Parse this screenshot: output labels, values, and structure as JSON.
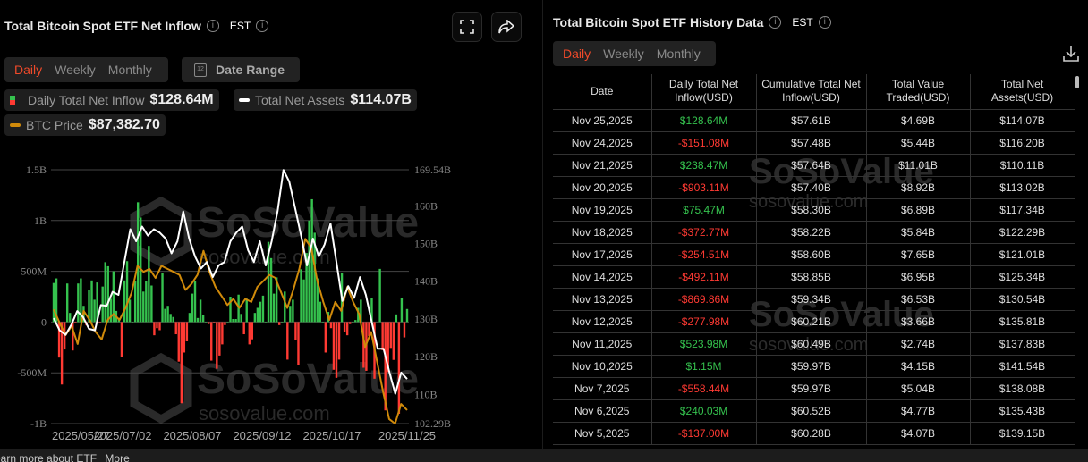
{
  "chart_panel": {
    "title": "Total Bitcoin Spot ETF Net Inflow",
    "timezone": "EST",
    "icons": [
      "info-icon",
      "fullscreen-icon",
      "share-icon",
      "calendar-icon"
    ],
    "period_tabs": [
      "Daily",
      "Weekly",
      "Monthly"
    ],
    "active_tab": "Daily",
    "date_range_label": "Date Range",
    "calendar_day": "12",
    "legend": [
      {
        "label": "Daily Total Net Inflow",
        "value": "$128.64M"
      },
      {
        "label": "Total Net Assets",
        "value": "$114.07B"
      },
      {
        "label": "BTC Price",
        "value": "$87,382.70"
      }
    ],
    "watermark": {
      "brand": "SoSoValue",
      "site": "sosovalue.com"
    }
  },
  "colors": {
    "accent": "#f04a2a",
    "inflow_positive": "#35c24e",
    "inflow_negative": "#ff3a33",
    "net_assets_line": "#ffffff",
    "btc_line": "#d08a0a"
  },
  "chart_data": {
    "type": "bar+line",
    "x_tick_labels": [
      "2025/05/27",
      "2025/07/02",
      "2025/08/07",
      "2025/09/12",
      "2025/10/17",
      "2025/11/25"
    ],
    "left_axis": {
      "tick_labels": [
        "1.5B",
        "1B",
        "500M",
        "0",
        "-500M",
        "-1B"
      ],
      "ylim_millions": [
        -1000,
        1500
      ]
    },
    "right_axis": {
      "tick_labels": [
        "169.54B",
        "160B",
        "150B",
        "140B",
        "130B",
        "120B",
        "110B",
        "102.29B"
      ],
      "ylim_billions": [
        102.29,
        169.54
      ]
    },
    "btc_axis": {
      "visible": false,
      "ylim_usd": [
        84330,
        141580
      ]
    },
    "grid": true,
    "series": [
      {
        "name": "Daily Total Net Inflow",
        "type": "bar",
        "unit": "USD millions",
        "values": [
          385,
          430,
          -350,
          -615,
          -270,
          380,
          90,
          -280,
          -10,
          380,
          430,
          160,
          -30,
          320,
          410,
          220,
          390,
          -10,
          350,
          590,
          550,
          230,
          500,
          110,
          40,
          -340,
          410,
          600,
          220,
          0,
          400,
          1180,
          1030,
          300,
          400,
          750,
          360,
          -130,
          -60,
          -80,
          480,
          130,
          160,
          80,
          50,
          -120,
          -390,
          -800,
          -300,
          -190,
          90,
          280,
          400,
          40,
          220,
          70,
          0,
          -20,
          -380,
          -10,
          -460,
          -330,
          -220,
          -30,
          0,
          250,
          30,
          30,
          270,
          80,
          -120,
          230,
          -220,
          -170,
          90,
          140,
          200,
          260,
          0,
          790,
          630,
          280,
          440,
          -30,
          0,
          300,
          -370,
          160,
          220,
          -180,
          -420,
          520,
          420,
          680,
          1000,
          1210,
          880,
          430,
          200,
          0,
          -300,
          100,
          -60,
          -470,
          -550,
          -370,
          480,
          -100,
          -130,
          -20,
          0,
          20,
          140,
          220,
          -450,
          -480,
          -137.0,
          240.03,
          -558.44,
          1.15,
          523.98,
          -277.98,
          -869.86,
          -492.11,
          -254.51,
          -372.77,
          75.47,
          -903.11,
          238.47,
          -151.08,
          128.64
        ]
      },
      {
        "name": "Total Net Assets",
        "type": "line",
        "unit": "USD billions",
        "values": [
          130.2,
          127.0,
          125.8,
          128.5,
          132.1,
          130.5,
          127.4,
          127.0,
          133.7,
          133.5,
          137.2,
          136.4,
          145.1,
          153.8,
          150.6,
          154.5,
          152.1,
          153.8,
          152.9,
          151.3,
          147.4,
          150.6,
          158.5,
          151.3,
          146.6,
          143.4,
          145.1,
          141.1,
          144.2,
          145.1,
          150.6,
          152.9,
          154.5,
          148.2,
          145.1,
          150.6,
          144.2,
          150.6,
          158.5,
          169.5,
          166.4,
          159.3,
          152.1,
          144.2,
          151.3,
          146.6,
          149.8,
          155.3,
          145.1,
          134.8,
          138.7,
          135.6,
          141.1,
          136.4,
          129.2,
          122.1,
          122.1,
          115.8,
          110.2,
          115.8,
          114.1
        ]
      },
      {
        "name": "BTC Price",
        "type": "line",
        "unit": "USD",
        "values": [
          110080,
          107030,
          104320,
          106350,
          102290,
          109740,
          107710,
          104990,
          103300,
          107710,
          109060,
          107710,
          110420,
          113800,
          119900,
          118550,
          119220,
          117190,
          119900,
          119220,
          118550,
          117870,
          114480,
          115840,
          117870,
          123290,
          118550,
          115160,
          113130,
          111090,
          112450,
          110420,
          112450,
          111770,
          115160,
          116510,
          117870,
          117190,
          113800,
          110420,
          114480,
          119220,
          126000,
          123970,
          116510,
          111770,
          107710,
          111770,
          109740,
          115160,
          111770,
          109060,
          101610,
          104990,
          98220,
          91450,
          85350,
          84330,
          88740,
          87380
        ]
      }
    ]
  },
  "history_panel": {
    "title": "Total Bitcoin Spot ETF History Data",
    "timezone": "EST",
    "period_tabs": [
      "Daily",
      "Weekly",
      "Monthly"
    ],
    "active_tab": "Daily",
    "columns": [
      "Date",
      "Daily Total Net Inflow(USD)",
      "Cumulative Total Net Inflow(USD)",
      "Total Value Traded(USD)",
      "Total Net Assets(USD)"
    ],
    "rows": [
      [
        "Nov 25,2025",
        "$128.64M",
        "$57.61B",
        "$4.69B",
        "$114.07B"
      ],
      [
        "Nov 24,2025",
        "-$151.08M",
        "$57.48B",
        "$5.44B",
        "$116.20B"
      ],
      [
        "Nov 21,2025",
        "$238.47M",
        "$57.64B",
        "$11.01B",
        "$110.11B"
      ],
      [
        "Nov 20,2025",
        "-$903.11M",
        "$57.40B",
        "$8.92B",
        "$113.02B"
      ],
      [
        "Nov 19,2025",
        "$75.47M",
        "$58.30B",
        "$6.89B",
        "$117.34B"
      ],
      [
        "Nov 18,2025",
        "-$372.77M",
        "$58.22B",
        "$5.84B",
        "$122.29B"
      ],
      [
        "Nov 17,2025",
        "-$254.51M",
        "$58.60B",
        "$7.65B",
        "$121.01B"
      ],
      [
        "Nov 14,2025",
        "-$492.11M",
        "$58.85B",
        "$6.95B",
        "$125.34B"
      ],
      [
        "Nov 13,2025",
        "-$869.86M",
        "$59.34B",
        "$6.53B",
        "$130.54B"
      ],
      [
        "Nov 12,2025",
        "-$277.98M",
        "$60.21B",
        "$3.66B",
        "$135.81B"
      ],
      [
        "Nov 11,2025",
        "$523.98M",
        "$60.49B",
        "$2.74B",
        "$137.83B"
      ],
      [
        "Nov 10,2025",
        "$1.15M",
        "$59.97B",
        "$4.15B",
        "$141.54B"
      ],
      [
        "Nov 7,2025",
        "-$558.44M",
        "$59.97B",
        "$5.04B",
        "$138.08B"
      ],
      [
        "Nov 6,2025",
        "$240.03M",
        "$60.52B",
        "$4.77B",
        "$135.43B"
      ],
      [
        "Nov 5,2025",
        "-$137.00M",
        "$60.28B",
        "$4.07B",
        "$139.15B"
      ]
    ]
  },
  "footer": {
    "text": "earn more about ETF",
    "link": "More"
  }
}
